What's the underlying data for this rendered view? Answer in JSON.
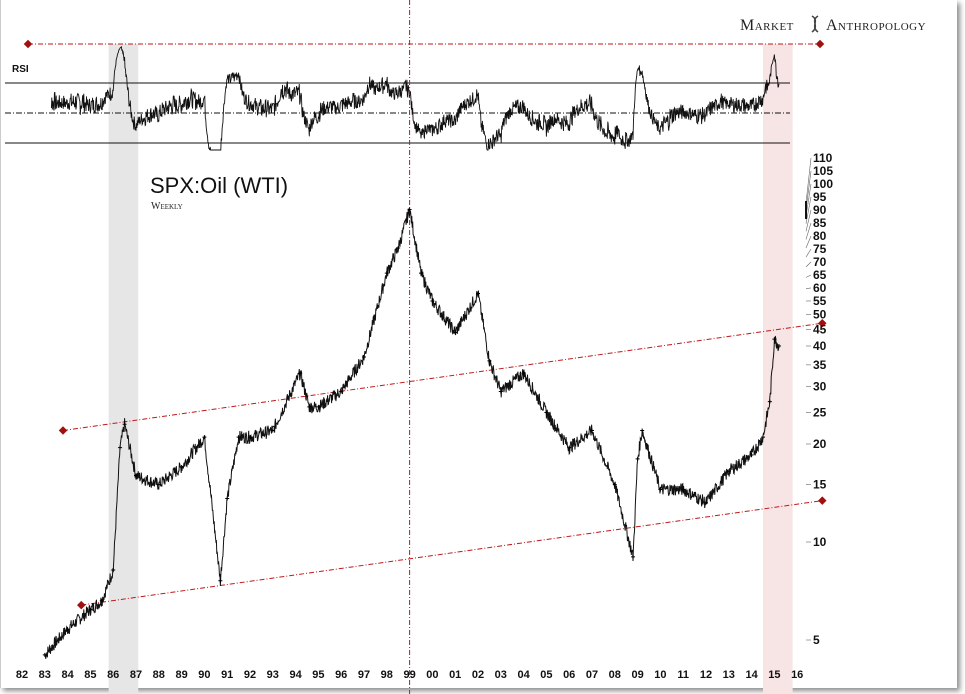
{
  "brand": {
    "left": "Market",
    "right": "Anthropology"
  },
  "chart_data": {
    "type": "line",
    "title": "SPX:Oil (WTI)",
    "subtitle": "Weekly",
    "indicator_label": "RSI",
    "yscale": "log",
    "ylim": [
      4,
      112
    ],
    "y_ticks": [
      110,
      105,
      100,
      95,
      90,
      85,
      80,
      75,
      70,
      65,
      60,
      55,
      50,
      45,
      40,
      35,
      30,
      25,
      20,
      15,
      10,
      5
    ],
    "x_tick_labels": [
      "82",
      "83",
      "84",
      "85",
      "86",
      "87",
      "88",
      "89",
      "90",
      "91",
      "92",
      "93",
      "94",
      "95",
      "96",
      "97",
      "98",
      "99",
      "00",
      "01",
      "02",
      "03",
      "04",
      "05",
      "06",
      "07",
      "08",
      "09",
      "10",
      "11",
      "12",
      "13",
      "14",
      "15",
      "16"
    ],
    "x_range_years": [
      1982,
      2016
    ],
    "x": [
      1983.0,
      1984.0,
      1985.0,
      1985.5,
      1986.0,
      1986.3,
      1986.5,
      1987.0,
      1988.0,
      1989.0,
      1990.0,
      1990.7,
      1991.0,
      1991.5,
      1992.0,
      1993.0,
      1994.2,
      1994.6,
      1995.0,
      1996.0,
      1997.0,
      1998.0,
      1998.5,
      1999.0,
      1999.5,
      2000.0,
      2001.0,
      2002.0,
      2002.5,
      2003.0,
      2004.0,
      2005.0,
      2006.0,
      2007.0,
      2008.0,
      2008.8,
      2009.0,
      2009.2,
      2010.0,
      2011.0,
      2012.0,
      2013.0,
      2014.0,
      2014.5,
      2014.8,
      2015.0,
      2015.2
    ],
    "values": [
      4.5,
      5.4,
      6.2,
      6.6,
      8.2,
      19.5,
      23,
      16,
      15,
      17,
      21,
      7.6,
      13.6,
      21,
      21,
      22,
      33,
      26,
      26,
      29,
      37,
      67,
      80,
      105,
      67,
      55,
      44,
      58,
      36,
      29,
      33,
      25,
      19.5,
      22,
      15,
      9,
      18,
      22,
      14.5,
      14.5,
      13.2,
      16.5,
      18.5,
      21,
      27,
      42,
      40
    ],
    "rsi_levels": [
      70,
      50,
      30
    ],
    "trendlines": [
      {
        "name": "upper-channel",
        "x": [
          1983.8,
          2017.1
        ],
        "y": [
          22,
          47
        ]
      },
      {
        "name": "lower-channel",
        "x": [
          1984.6,
          2017.1
        ],
        "y": [
          6.4,
          13.4
        ]
      }
    ],
    "vertical_marker_year": 1999.0,
    "shaded_periods": [
      {
        "name": "1986",
        "x": [
          1985.8,
          1987.1
        ],
        "color": "#e6e6e6"
      },
      {
        "name": "2015",
        "x": [
          2014.5,
          2015.8
        ],
        "color": "#f7e4e4"
      }
    ],
    "colors": {
      "series": "#111111",
      "trend": "#c0181b",
      "marker": "#a01010"
    }
  }
}
